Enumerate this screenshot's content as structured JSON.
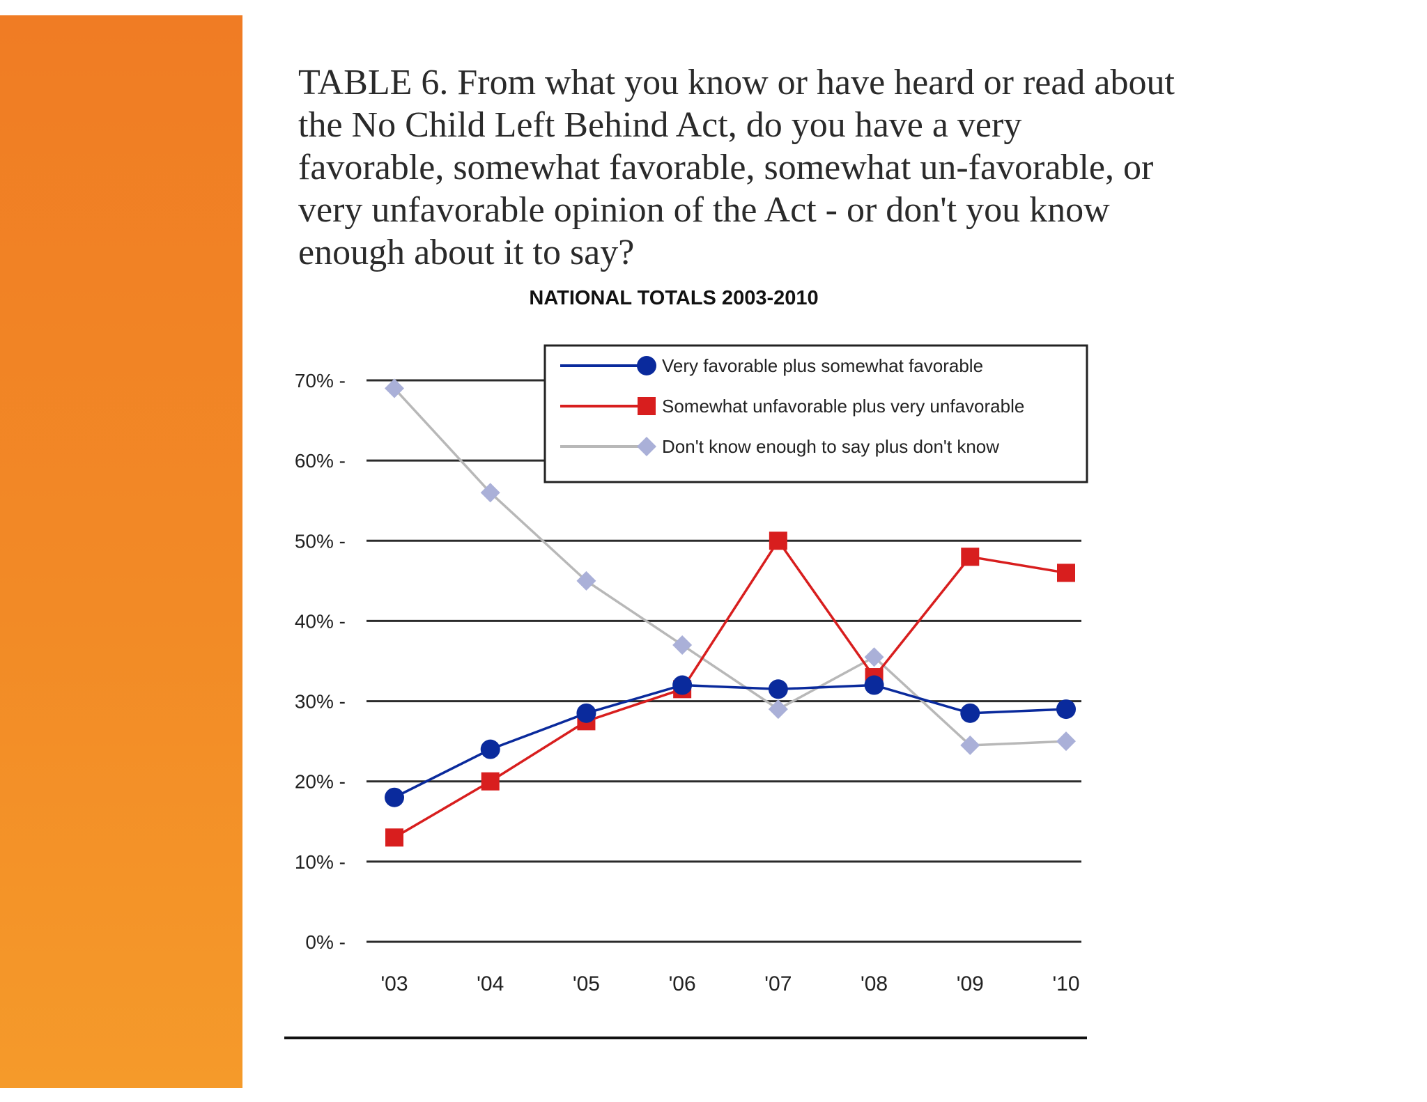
{
  "question": "TABLE 6. From what you know or have heard or read about the No Child Left Behind Act, do you have a very favorable, somewhat favorable, somewhat un-favorable, or very unfavorable opinion of the Act - or don't you know enough about it to say?",
  "chart_data": {
    "type": "line",
    "title": "NATIONAL TOTALS 2003-2010",
    "xlabel": "",
    "ylabel": "",
    "categories": [
      "'03",
      "'04",
      "'05",
      "'06",
      "'07",
      "'08",
      "'09",
      "'10"
    ],
    "y_ticks": [
      0,
      10,
      20,
      30,
      40,
      50,
      60,
      70
    ],
    "y_tick_labels": [
      "0% -",
      "10% -",
      "20% -",
      "30% -",
      "40% -",
      "50% -",
      "60% -",
      "70% -"
    ],
    "ylim": [
      0,
      70
    ],
    "grid": true,
    "legend_position": "top-right",
    "series": [
      {
        "name": "Very favorable plus somewhat favorable",
        "values": [
          18,
          24,
          28.5,
          32,
          31.5,
          32,
          28.5,
          29
        ],
        "color": "#0a2a9c",
        "marker": "circle"
      },
      {
        "name": "Somewhat unfavorable plus very unfavorable",
        "values": [
          13,
          20,
          27.5,
          31.5,
          50,
          33,
          48,
          46
        ],
        "color": "#d81e1e",
        "marker": "square"
      },
      {
        "name": "Don't know enough to say plus don't know",
        "values": [
          69,
          56,
          45,
          37,
          29,
          35.5,
          24.5,
          25
        ],
        "color": "#aab0d8",
        "line_color": "#b8b8b8",
        "marker": "diamond"
      }
    ]
  }
}
